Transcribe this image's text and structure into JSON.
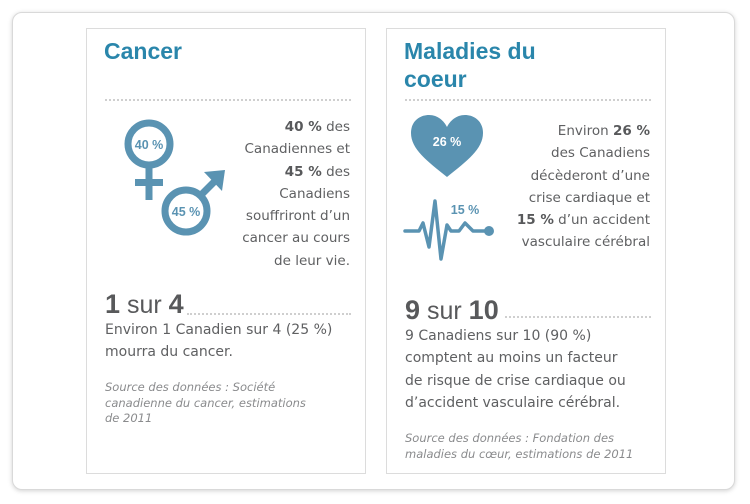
{
  "cancer": {
    "title": "Cancer",
    "female_pct": "40 %",
    "male_pct": "45 %",
    "blurb_l1_a": "40 %",
    "blurb_l1_b": " des",
    "blurb_l2": "Canadiennes et",
    "blurb_l3_a": "45 %",
    "blurb_l3_b": " des",
    "blurb_l4": "Canadiens",
    "blurb_l5": "souffriront d’un",
    "blurb_l6": "cancer au cours",
    "blurb_l7": "de leur vie.",
    "stat_num_1": "1",
    "stat_word": "sur",
    "stat_num_2": "4",
    "body_l1": "Environ 1 Canadien sur 4 (25 %)",
    "body_l2": "mourra du cancer.",
    "source_l1": "Source des données : Société",
    "source_l2": "canadienne du cancer, estimations",
    "source_l3": "de 2011",
    "icon_female": "female-symbol-icon",
    "icon_male": "male-symbol-icon"
  },
  "heart": {
    "title_l1": "Maladies du",
    "title_l2": "coeur",
    "heart_pct": "26 %",
    "stroke_pct": "15 %",
    "blurb_l1_a": "Environ ",
    "blurb_l1_b": "26 %",
    "blurb_l2": "des Canadiens",
    "blurb_l3": "décèderont d’une",
    "blurb_l4": "crise cardiaque et",
    "blurb_l5_a": "15 %",
    "blurb_l5_b": " d’un accident",
    "blurb_l6": "vasculaire cérébral",
    "stat_num_1": "9",
    "stat_word": "sur",
    "stat_num_2": "10",
    "body_l1": "9 Canadiens sur 10 (90 %)",
    "body_l2": "comptent au moins un facteur",
    "body_l3": "de risque de crise cardiaque ou",
    "body_l4": "d’accident vasculaire cérébral.",
    "source_l1": "Source des données : Fondation des",
    "source_l2": "maladies du cœur, estimations de 2011",
    "icon_heart": "heart-icon",
    "icon_pulse": "heartbeat-line-icon"
  },
  "colors": {
    "accent": "#2a86ab",
    "icon": "#5a93b2",
    "text": "#58595b"
  }
}
